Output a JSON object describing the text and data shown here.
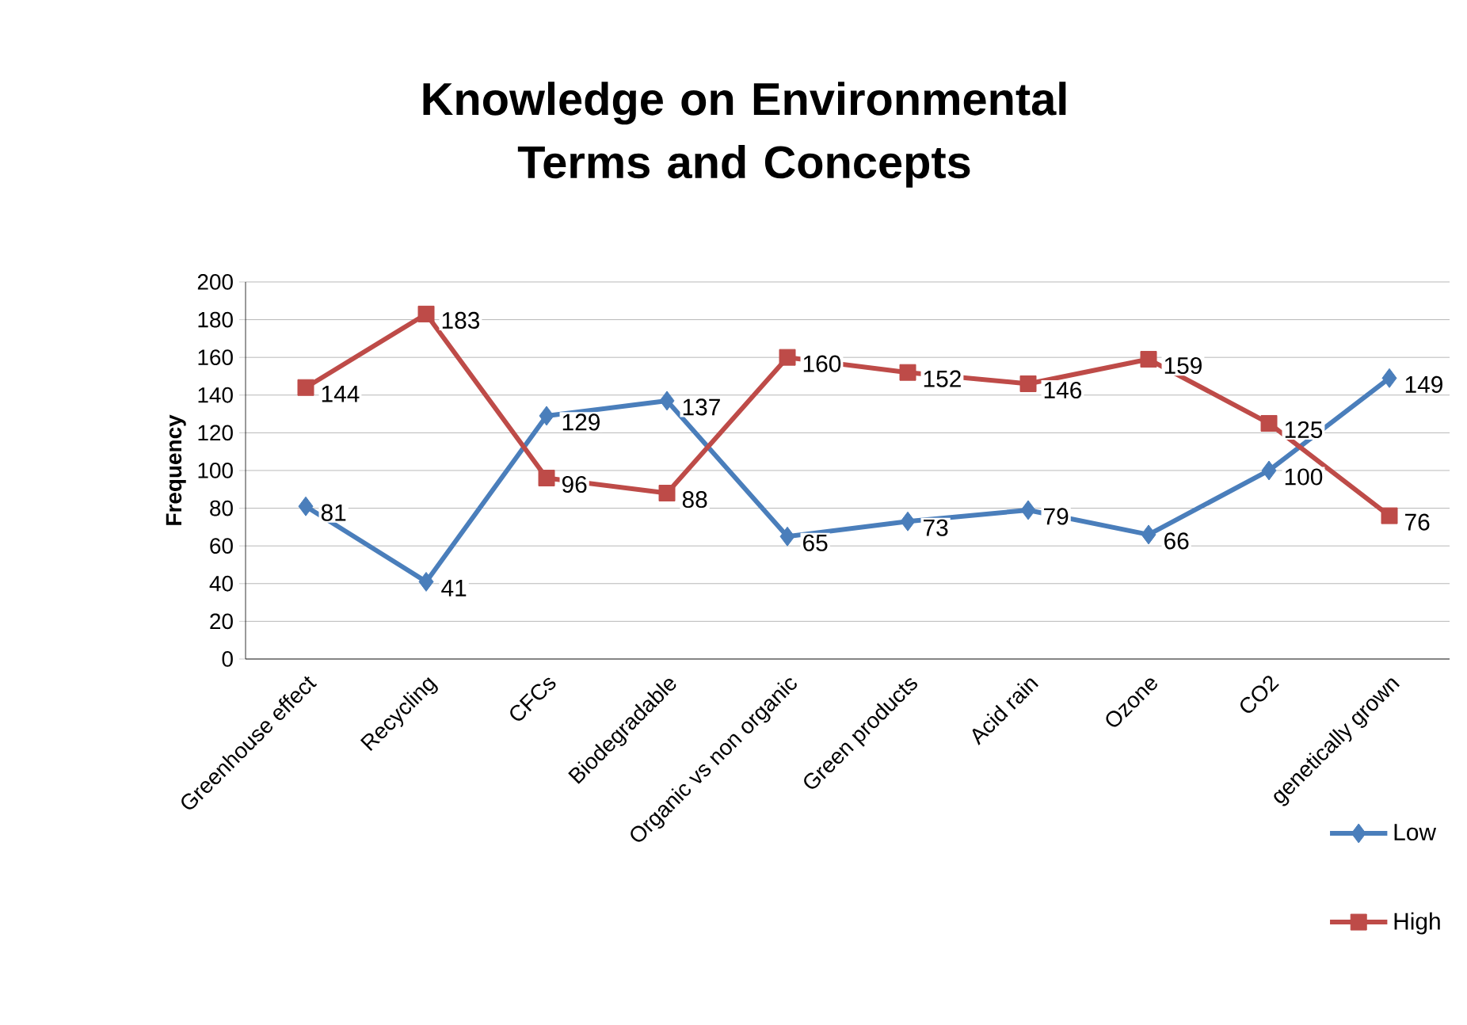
{
  "chart_data": {
    "type": "line",
    "title": "Knowledge on Environmental Terms and Concepts",
    "ylabel": "Frequency",
    "categories": [
      "Greenhouse effect",
      "Recycling",
      "CFCs",
      "Biodegradable",
      "Organic vs non organic",
      "Green products",
      "Acid rain",
      "Ozone",
      "CO2",
      "genetically grown"
    ],
    "series": [
      {
        "name": "Low",
        "color": "#4a7ebb",
        "marker": "diamond",
        "values": [
          81,
          41,
          129,
          137,
          65,
          73,
          79,
          66,
          100,
          149
        ]
      },
      {
        "name": "High",
        "color": "#be4b48",
        "marker": "square",
        "values": [
          144,
          183,
          96,
          88,
          160,
          152,
          146,
          159,
          125,
          76
        ]
      }
    ],
    "ylim": [
      0,
      200
    ],
    "yticks": [
      0,
      20,
      40,
      60,
      80,
      100,
      120,
      140,
      160,
      180,
      200
    ],
    "grid": "y",
    "legend": "bottom right",
    "data_labels": true
  }
}
